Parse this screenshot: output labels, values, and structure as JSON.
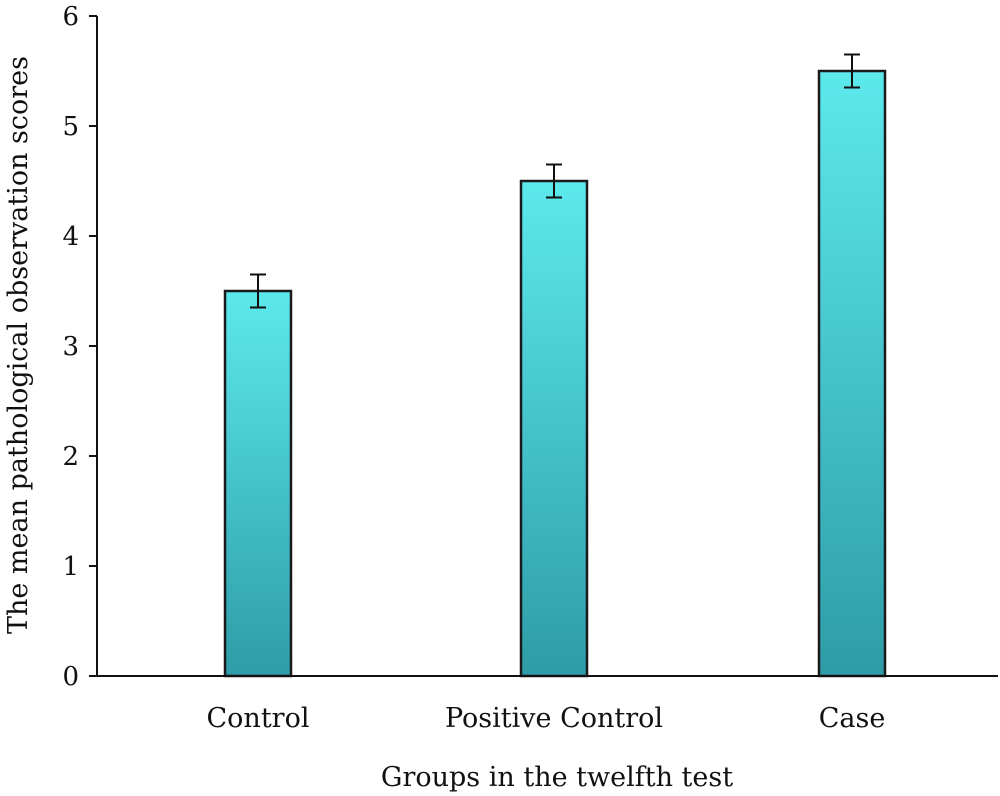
{
  "chart_data": {
    "type": "bar",
    "categories": [
      "Control",
      "Positive Control",
      "Case"
    ],
    "values": [
      3.5,
      4.5,
      5.5
    ],
    "error": [
      0.15,
      0.15,
      0.15
    ],
    "xlabel": "Groups in the twelfth test",
    "ylabel": "The mean pathological observation scores",
    "ylim": [
      0,
      6
    ],
    "yticks": [
      0,
      1,
      2,
      3,
      4,
      5,
      6
    ],
    "grid": false,
    "legend": "none",
    "colors": {
      "bar_top": "#5CE9EC",
      "bar_bottom": "#2E9CA8",
      "bar_edge": "#1a1a1a",
      "axis": "#111111"
    }
  }
}
